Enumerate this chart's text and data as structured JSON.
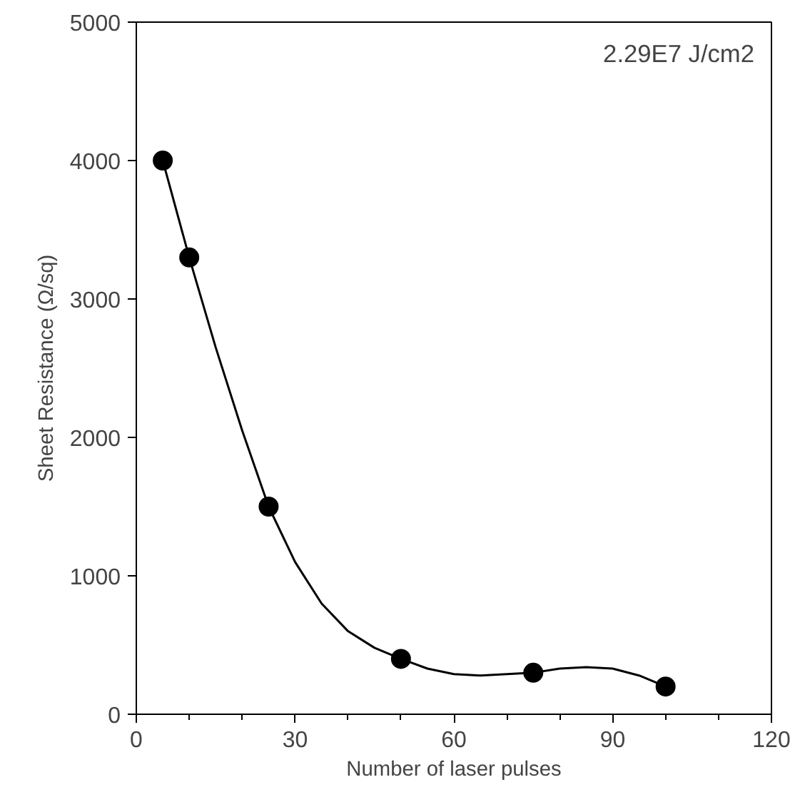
{
  "chart_data": {
    "type": "scatter",
    "xlabel": "Number of laser pulses",
    "ylabel": "Sheet Resistance (Ω/sq)",
    "annotations": [
      "2.29E7 J/cm2"
    ],
    "x": [
      5,
      10,
      25,
      50,
      75,
      100
    ],
    "series": [
      {
        "color": "#000000",
        "values": [
          4000,
          3300,
          1500,
          400,
          300,
          200
        ]
      },
      {
        "type": "line",
        "color": "#000000",
        "marker": "none",
        "x": [
          5,
          10,
          15,
          20,
          25,
          30,
          35,
          40,
          45,
          50,
          55,
          60,
          65,
          70,
          75,
          80,
          85,
          90,
          95,
          100
        ],
        "values": [
          4000,
          3300,
          2650,
          2050,
          1500,
          1100,
          800,
          600,
          480,
          400,
          330,
          290,
          280,
          290,
          300,
          330,
          340,
          330,
          280,
          200
        ]
      }
    ],
    "xlim": [
      0,
      120
    ],
    "xticks": [
      0,
      30,
      60,
      90,
      120
    ],
    "ylim": [
      0,
      5000
    ],
    "yticks": [
      0,
      1000,
      2000,
      3000,
      4000,
      5000
    ],
    "grid": false,
    "marker": "circle",
    "line_style": "solid"
  }
}
